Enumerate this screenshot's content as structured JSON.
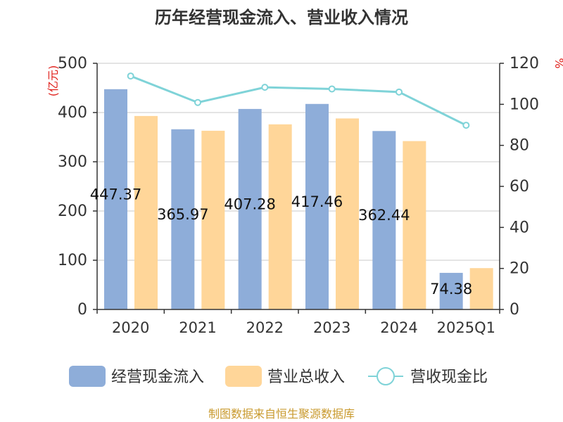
{
  "chart_data": {
    "type": "bar",
    "title": "历年经营现金流入、营业收入情况",
    "categories": [
      "2020",
      "2021",
      "2022",
      "2023",
      "2024",
      "2025Q1"
    ],
    "series": [
      {
        "name": "经营现金流入",
        "kind": "bar",
        "axis": "left",
        "color": "#8eadd9",
        "values": [
          447.37,
          365.97,
          407.28,
          417.46,
          362.44,
          74.38
        ],
        "labels": [
          "447.37",
          "365.97",
          "407.28",
          "417.46",
          "362.44",
          "74.38"
        ]
      },
      {
        "name": "营业总收入",
        "kind": "bar",
        "axis": "left",
        "color": "#ffd699",
        "values": [
          393,
          363,
          376,
          388,
          342,
          84
        ]
      },
      {
        "name": "营收现金比",
        "kind": "line",
        "axis": "right",
        "color": "#7fd3d8",
        "values": [
          113.8,
          100.9,
          108.3,
          107.5,
          106.0,
          89.8
        ]
      }
    ],
    "y_left": {
      "unit": "(亿元)",
      "ylim": [
        0,
        500
      ],
      "ticks": [
        "0",
        "100",
        "200",
        "300",
        "400",
        "500"
      ]
    },
    "y_right": {
      "unit": "%",
      "ylim": [
        0,
        120
      ],
      "ticks": [
        "0",
        "20",
        "40",
        "60",
        "80",
        "100",
        "120"
      ]
    },
    "grid": true,
    "legend": "bottom"
  },
  "source": "制图数据来自恒生聚源数据库"
}
